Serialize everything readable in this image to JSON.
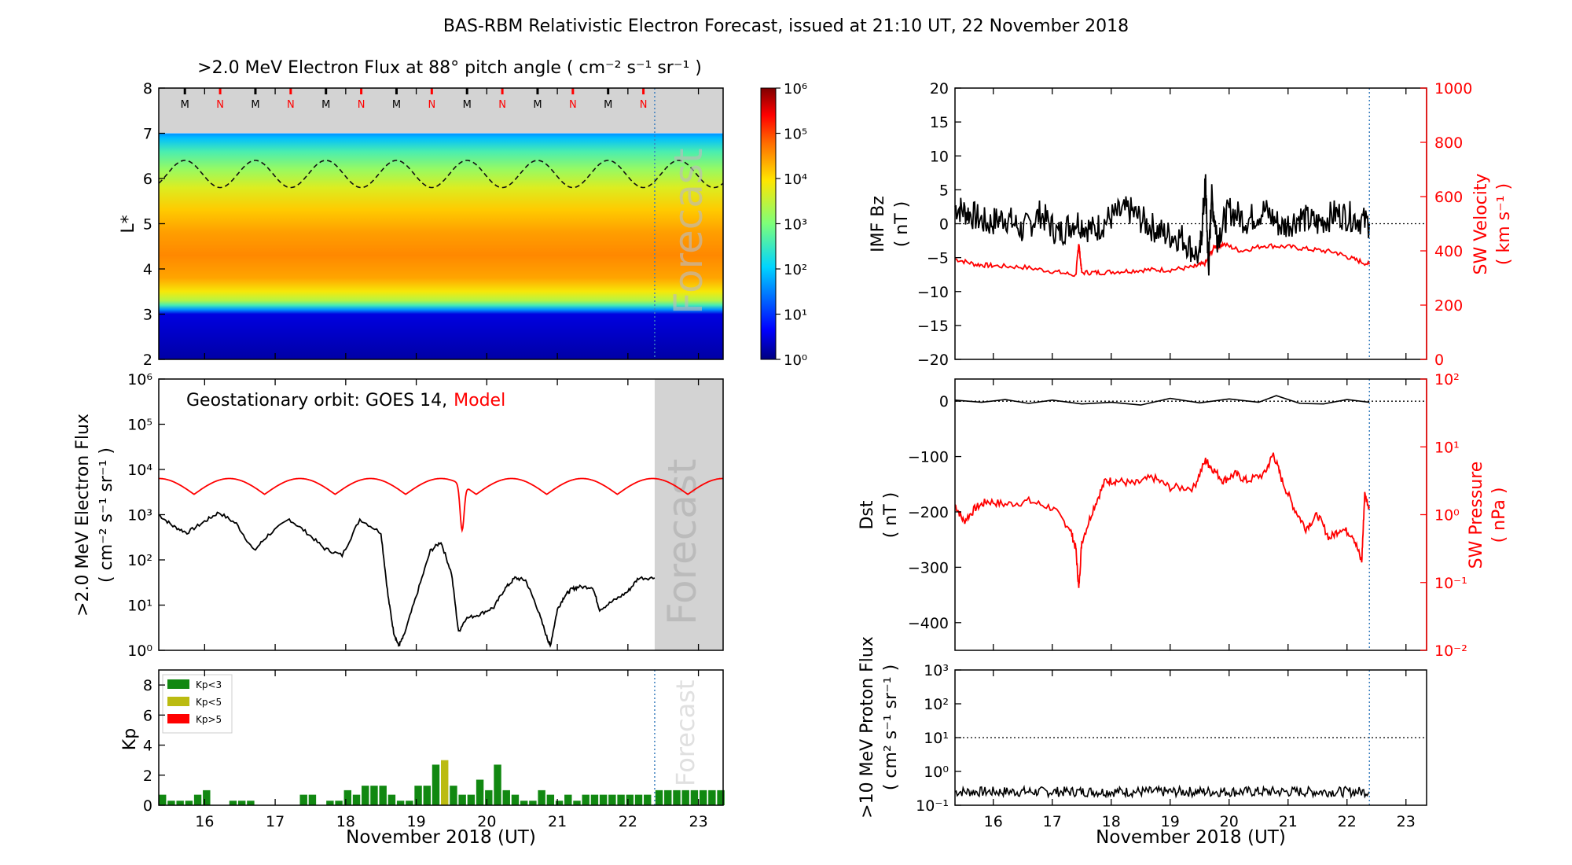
{
  "title": "BAS-RBM Relativistic Electron Forecast, issued at 21:10 UT, 22 November 2018",
  "forecast_label": "Forecast",
  "chart_data": [
    {
      "id": "flux_map",
      "type": "heatmap",
      "title": ">2.0 MeV Electron Flux at 88° pitch angle ( cm⁻² s⁻¹ sr⁻¹ )",
      "ylabel": "L*",
      "xlim": [
        15.35,
        23.35
      ],
      "ylim": [
        2,
        8
      ],
      "yticks": [
        2,
        3,
        4,
        5,
        6,
        7,
        8
      ],
      "x_ticks": [
        "16",
        "17",
        "18",
        "19",
        "20",
        "21",
        "22",
        "23"
      ],
      "forecast_start": 22.38,
      "colorbar": {
        "scale": "log",
        "min": 1,
        "max": 1000000,
        "tick_labels": [
          "10⁰",
          "10¹",
          "10²",
          "10³",
          "10⁴",
          "10⁵",
          "10⁶"
        ]
      },
      "profile_L": [
        2.0,
        3.0,
        3.1,
        3.2,
        3.3,
        3.5,
        3.8,
        4.3,
        4.8,
        5.3,
        5.8,
        6.2,
        6.6,
        6.9,
        7.0
      ],
      "profile_log10_flux": [
        0.2,
        0.5,
        1.6,
        2.6,
        3.4,
        3.9,
        4.4,
        4.6,
        4.45,
        4.15,
        3.7,
        3.2,
        2.6,
        1.9,
        1.6
      ],
      "geo_orbit_L_mean": 6.1,
      "geo_orbit_L_amplitude": 0.3,
      "markers": [
        {
          "x": 15.72,
          "label": "M"
        },
        {
          "x": 16.22,
          "label": "N"
        },
        {
          "x": 16.72,
          "label": "M"
        },
        {
          "x": 17.22,
          "label": "N"
        },
        {
          "x": 17.72,
          "label": "M"
        },
        {
          "x": 18.22,
          "label": "N"
        },
        {
          "x": 18.72,
          "label": "M"
        },
        {
          "x": 19.22,
          "label": "N"
        },
        {
          "x": 19.72,
          "label": "M"
        },
        {
          "x": 20.22,
          "label": "N"
        },
        {
          "x": 20.72,
          "label": "M"
        },
        {
          "x": 21.22,
          "label": "N"
        },
        {
          "x": 21.72,
          "label": "M"
        },
        {
          "x": 22.22,
          "label": "N"
        }
      ]
    },
    {
      "id": "geo_flux",
      "type": "line",
      "ylabel": ">2.0 MeV Electron Flux",
      "ylabel_units": "( cm⁻² s⁻¹ sr⁻¹ )",
      "annotation": "Geostationary orbit:   GOES 14,",
      "annotation_model": "Model",
      "yscale": "log",
      "ylim_log10": [
        0,
        6
      ],
      "ytick_labels": [
        "10⁰",
        "10¹",
        "10²",
        "10³",
        "10⁴",
        "10⁵",
        "10⁶"
      ],
      "xlim": [
        15.35,
        23.35
      ],
      "forecast_start": 22.38,
      "series": [
        {
          "name": "GOES 14",
          "color": "#000000",
          "x": [
            15.35,
            15.55,
            15.75,
            16.0,
            16.2,
            16.45,
            16.7,
            16.9,
            17.2,
            17.45,
            17.7,
            17.95,
            18.2,
            18.5,
            18.6,
            18.68,
            18.75,
            18.82,
            19.0,
            19.2,
            19.35,
            19.5,
            19.6,
            19.7,
            19.9,
            20.1,
            20.25,
            20.4,
            20.55,
            20.7,
            20.85,
            20.9,
            21.0,
            21.1,
            21.2,
            21.3,
            21.5,
            21.6,
            21.8,
            22.0,
            22.15,
            22.38
          ],
          "log10_y": [
            3.0,
            2.75,
            2.6,
            2.85,
            3.05,
            2.8,
            2.2,
            2.55,
            2.9,
            2.6,
            2.25,
            2.1,
            2.9,
            2.6,
            1.2,
            0.4,
            0.1,
            0.3,
            1.2,
            2.2,
            2.4,
            1.7,
            0.4,
            0.7,
            0.8,
            0.95,
            1.35,
            1.6,
            1.55,
            1.0,
            0.3,
            0.1,
            0.9,
            1.2,
            1.35,
            1.4,
            1.4,
            0.9,
            1.1,
            1.3,
            1.6,
            1.6
          ]
        },
        {
          "name": "Model",
          "color": "#ff0000",
          "x_start": 15.35,
          "x_end": 23.35,
          "log10_mean": 3.45,
          "log10_amplitude": 0.35,
          "period_days": 1.0,
          "phase_peak": 15.35
        }
      ]
    },
    {
      "id": "kp",
      "type": "bar",
      "ylabel": "Kp",
      "ylim": [
        0,
        9
      ],
      "yticks": [
        0,
        2,
        4,
        6,
        8
      ],
      "xlim": [
        15.35,
        23.35
      ],
      "xlabel": "November 2018 (UT)",
      "x_ticks": [
        "16",
        "17",
        "18",
        "19",
        "20",
        "21",
        "22",
        "23"
      ],
      "bar_width_days": 0.105,
      "forecast_start": 22.38,
      "legend": [
        {
          "label": "Kp<3",
          "color": "#118811"
        },
        {
          "label": "Kp<5",
          "color": "#bbbb11"
        },
        {
          "label": "Kp>5",
          "color": "#ff0000"
        }
      ],
      "values": [
        0.7,
        0.3,
        0.3,
        0.3,
        0.7,
        1.0,
        0.0,
        0.0,
        0.3,
        0.3,
        0.3,
        0.0,
        0.0,
        0.0,
        0.0,
        0.0,
        0.7,
        0.7,
        0.0,
        0.3,
        0.3,
        1.0,
        0.7,
        1.3,
        1.3,
        1.3,
        0.7,
        0.3,
        0.3,
        1.3,
        1.3,
        2.7,
        3.0,
        1.3,
        0.7,
        0.7,
        1.7,
        1.0,
        2.7,
        1.0,
        0.7,
        0.3,
        0.3,
        1.0,
        0.7,
        0.3,
        0.7,
        0.3,
        0.7,
        0.7,
        0.7,
        0.7,
        0.7,
        0.7,
        0.7,
        0.7
      ],
      "forecast_values": [
        1.0,
        1.0,
        1.0,
        1.0,
        1.0,
        1.0,
        1.0,
        1.0
      ]
    },
    {
      "id": "imf",
      "type": "line",
      "ylabel_left": "IMF Bz",
      "ylabel_left_units": "( nT )",
      "ylim_left": [
        -20,
        20
      ],
      "yticks_left": [
        -20,
        -15,
        -10,
        -5,
        0,
        5,
        10,
        15,
        20
      ],
      "ylabel_right": "SW Velocity",
      "ylabel_right_units": "( km s⁻¹ )",
      "ylim_right": [
        0,
        1000
      ],
      "yticks_right": [
        0,
        200,
        400,
        600,
        800,
        1000
      ],
      "xlim": [
        15.35,
        23.35
      ],
      "forecast_start": 22.38,
      "series": [
        {
          "name": "IMF Bz",
          "color": "#000000",
          "x": [
            15.35,
            15.6,
            15.9,
            16.2,
            16.5,
            16.8,
            17.1,
            17.4,
            17.7,
            18.0,
            18.3,
            18.6,
            18.9,
            19.2,
            19.5,
            19.6,
            19.65,
            19.7,
            19.8,
            20.0,
            20.3,
            20.6,
            20.9,
            21.2,
            21.5,
            21.8,
            22.1,
            22.38
          ],
          "y": [
            2.5,
            1.5,
            0.0,
            1.0,
            -1.0,
            1.5,
            -1.5,
            0.5,
            -1.0,
            1.0,
            2.0,
            0.0,
            -1.5,
            -2.0,
            -5.0,
            6.0,
            -7.0,
            4.0,
            -2.0,
            2.0,
            0.5,
            2.0,
            -0.5,
            1.0,
            0.0,
            1.5,
            1.0,
            0.0
          ]
        },
        {
          "name": "SW Velocity",
          "color": "#ff0000",
          "x": [
            15.35,
            15.7,
            16.0,
            16.5,
            17.0,
            17.4,
            17.45,
            17.5,
            17.8,
            18.2,
            18.6,
            19.0,
            19.4,
            19.6,
            19.75,
            19.9,
            20.2,
            20.6,
            21.0,
            21.4,
            21.8,
            22.1,
            22.38
          ],
          "y": [
            370,
            350,
            345,
            340,
            325,
            310,
            430,
            320,
            320,
            325,
            330,
            330,
            340,
            355,
            415,
            425,
            400,
            420,
            415,
            405,
            395,
            370,
            350
          ]
        }
      ]
    },
    {
      "id": "dst",
      "type": "line",
      "ylabel_left": "Dst",
      "ylabel_left_units": "( nT )",
      "ylim_left": [
        -450,
        40
      ],
      "yticks_left": [
        -400,
        -300,
        -200,
        -100,
        0
      ],
      "ylabel_right": "SW Pressure",
      "ylabel_right_units": "( nPa )",
      "yscale_right": "log",
      "ylim_right_log10": [
        -2,
        2
      ],
      "ytick_labels_right": [
        "10⁻²",
        "10⁻¹",
        "10⁰",
        "10¹",
        "10²"
      ],
      "xlim": [
        15.35,
        23.35
      ],
      "forecast_start": 22.38,
      "series": [
        {
          "name": "Dst",
          "color": "#000000",
          "x": [
            15.35,
            15.8,
            16.2,
            16.6,
            17.0,
            17.5,
            18.0,
            18.5,
            19.0,
            19.5,
            20.0,
            20.5,
            20.8,
            21.2,
            21.6,
            22.0,
            22.38
          ],
          "y": [
            2,
            -2,
            3,
            -4,
            2,
            -5,
            -2,
            -7,
            5,
            -3,
            4,
            -2,
            10,
            -4,
            -5,
            3,
            -2
          ]
        },
        {
          "name": "SW Pressure",
          "color": "#ff0000",
          "x": [
            15.35,
            15.5,
            15.7,
            15.9,
            16.2,
            16.6,
            17.0,
            17.3,
            17.4,
            17.45,
            17.5,
            17.7,
            17.9,
            18.1,
            18.4,
            18.7,
            19.0,
            19.4,
            19.6,
            19.7,
            19.9,
            20.1,
            20.3,
            20.6,
            20.75,
            20.9,
            21.1,
            21.3,
            21.5,
            21.7,
            21.9,
            22.1,
            22.25,
            22.3,
            22.38
          ],
          "log10_y": [
            0.15,
            -0.1,
            0.1,
            0.2,
            0.15,
            0.2,
            0.1,
            -0.2,
            -0.5,
            -1.1,
            -0.4,
            0.1,
            0.5,
            0.5,
            0.45,
            0.55,
            0.4,
            0.4,
            0.8,
            0.7,
            0.5,
            0.6,
            0.5,
            0.6,
            0.9,
            0.5,
            0.1,
            -0.2,
            0.0,
            -0.35,
            -0.2,
            -0.3,
            -0.7,
            0.3,
            0.1
          ]
        }
      ]
    },
    {
      "id": "proton",
      "type": "line",
      "ylabel": ">10 MeV Proton Flux",
      "ylabel_units": "( cm² s⁻¹ sr⁻¹ )",
      "yscale": "log",
      "ylim_log10": [
        -1,
        3
      ],
      "ytick_labels": [
        "10⁻¹",
        "10⁰",
        "10¹",
        "10²",
        "10³"
      ],
      "threshold": 10,
      "xlim": [
        15.35,
        23.35
      ],
      "xlabel": "November 2018 (UT)",
      "x_ticks": [
        "16",
        "17",
        "18",
        "19",
        "20",
        "21",
        "22",
        "23"
      ],
      "forecast_start": 22.38,
      "series": [
        {
          "name": ">10 MeV Proton Flux",
          "color": "#000000",
          "x_start": 15.35,
          "x_end": 22.38,
          "log10_mean": -0.6
        }
      ]
    }
  ]
}
